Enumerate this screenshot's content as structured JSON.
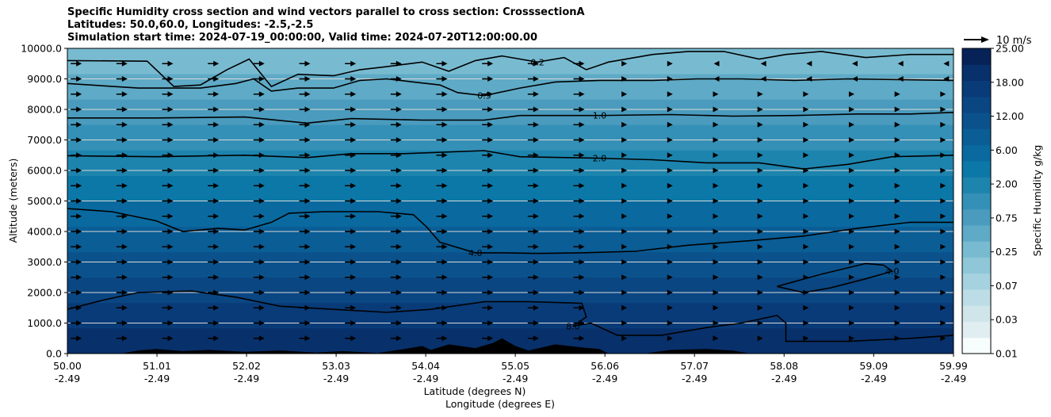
{
  "chart_data": {
    "type": "contour",
    "title_lines": [
      "Specific Humidity cross section and wind vectors parallel to cross section: CrosssectionA",
      "Latitudes: 50.0,60.0, Longitudes: -2.5,-2.5",
      "Simulation start time: 2024-07-19_00:00:00, Valid time: 2024-07-20T12:00:00.00"
    ],
    "ylabel": "Altitude (meters)",
    "xlabel_lat": "Latitude (degrees N)",
    "xlabel_lon": "Longitude (degrees E)",
    "ylim": [
      0,
      10000
    ],
    "y_ticks": [
      "0.0",
      "1000.0",
      "2000.0",
      "3000.0",
      "4000.0",
      "5000.0",
      "6000.0",
      "7000.0",
      "8000.0",
      "9000.0",
      "10000.0"
    ],
    "x_ticks": [
      {
        "lat": "50.00",
        "lon": "-2.49"
      },
      {
        "lat": "51.01",
        "lon": "-2.49"
      },
      {
        "lat": "52.02",
        "lon": "-2.49"
      },
      {
        "lat": "53.03",
        "lon": "-2.49"
      },
      {
        "lat": "54.04",
        "lon": "-2.49"
      },
      {
        "lat": "55.05",
        "lon": "-2.49"
      },
      {
        "lat": "56.06",
        "lon": "-2.49"
      },
      {
        "lat": "57.07",
        "lon": "-2.49"
      },
      {
        "lat": "58.08",
        "lon": "-2.49"
      },
      {
        "lat": "59.09",
        "lon": "-2.49"
      },
      {
        "lat": "59.99",
        "lon": "-2.49"
      }
    ],
    "colorbar_label": "Specific Humidity g/kg",
    "colorbar_ticks": [
      "0.01",
      "0.03",
      "0.07",
      "0.25",
      "0.75",
      "2.00",
      "6.00",
      "12.00",
      "18.00",
      "25.00"
    ],
    "colorbar_levels": [
      0.01,
      0.02,
      0.03,
      0.05,
      0.07,
      0.1,
      0.25,
      0.5,
      0.75,
      1.0,
      2.0,
      4.0,
      6.0,
      8.0,
      12.0,
      15.0,
      18.0,
      22.0,
      25.0
    ],
    "colorbar_colors": [
      "#f7fcfd",
      "#e0eef1",
      "#cfe5ea",
      "#bcdde5",
      "#a6d2df",
      "#8fc7d8",
      "#78bbd1",
      "#5faac6",
      "#4a9bbd",
      "#3490b6",
      "#1d84ad",
      "#0c78a8",
      "#0a6aa0",
      "#0a5d95",
      "#0b528c",
      "#0a4682",
      "#093b78",
      "#08306b",
      "#062257"
    ],
    "contours": [
      {
        "level": "0.2",
        "label": "0.2",
        "points": [
          [
            50,
            9600
          ],
          [
            50.9,
            9580
          ],
          [
            51.2,
            8750
          ],
          [
            51.5,
            8800
          ],
          [
            51.8,
            9300
          ],
          [
            52.05,
            9650
          ],
          [
            52.3,
            8750
          ],
          [
            52.6,
            9150
          ],
          [
            53.0,
            9100
          ],
          [
            53.3,
            9300
          ],
          [
            53.6,
            9400
          ],
          [
            54.0,
            9550
          ],
          [
            54.3,
            9250
          ],
          [
            54.6,
            9600
          ],
          [
            54.9,
            9750
          ],
          [
            55.3,
            9550
          ],
          [
            55.6,
            9700
          ],
          [
            55.85,
            9300
          ],
          [
            56.1,
            9550
          ],
          [
            56.6,
            9800
          ],
          [
            57.0,
            9900
          ],
          [
            57.4,
            9900
          ],
          [
            57.8,
            9650
          ],
          [
            58.1,
            9800
          ],
          [
            58.5,
            9900
          ],
          [
            59.0,
            9700
          ],
          [
            59.5,
            9800
          ],
          [
            59.99,
            9800
          ]
        ]
      },
      {
        "level": "0.5",
        "label": "0.5",
        "points": [
          [
            50,
            8850
          ],
          [
            50.8,
            8700
          ],
          [
            51.5,
            8700
          ],
          [
            51.9,
            8850
          ],
          [
            52.1,
            9000
          ],
          [
            52.3,
            8600
          ],
          [
            52.6,
            8700
          ],
          [
            53.0,
            8700
          ],
          [
            53.3,
            8950
          ],
          [
            53.6,
            9000
          ],
          [
            53.9,
            8900
          ],
          [
            54.2,
            8800
          ],
          [
            54.4,
            8550
          ],
          [
            54.7,
            8450
          ],
          [
            55.1,
            8700
          ],
          [
            55.5,
            8900
          ],
          [
            56.0,
            8950
          ],
          [
            56.6,
            8950
          ],
          [
            57.1,
            9000
          ],
          [
            57.6,
            9000
          ],
          [
            58.2,
            8950
          ],
          [
            58.8,
            9000
          ],
          [
            59.3,
            8980
          ],
          [
            59.99,
            8950
          ]
        ]
      },
      {
        "level": "1.0",
        "label": "1.0",
        "points": [
          [
            50,
            7720
          ],
          [
            51,
            7720
          ],
          [
            52,
            7750
          ],
          [
            52.7,
            7550
          ],
          [
            53.2,
            7700
          ],
          [
            54,
            7650
          ],
          [
            54.7,
            7650
          ],
          [
            55.1,
            7800
          ],
          [
            56,
            7800
          ],
          [
            56.8,
            7830
          ],
          [
            57.5,
            7780
          ],
          [
            58.2,
            7800
          ],
          [
            58.9,
            7850
          ],
          [
            59.5,
            7850
          ],
          [
            59.99,
            7900
          ]
        ]
      },
      {
        "level": "2.0",
        "label": "2.0",
        "points": [
          [
            50,
            6480
          ],
          [
            51,
            6450
          ],
          [
            52,
            6500
          ],
          [
            52.7,
            6420
          ],
          [
            53.2,
            6550
          ],
          [
            53.8,
            6550
          ],
          [
            54.7,
            6650
          ],
          [
            55.1,
            6450
          ],
          [
            56,
            6400
          ],
          [
            56.6,
            6350
          ],
          [
            57.2,
            6250
          ],
          [
            57.8,
            6250
          ],
          [
            58.3,
            6050
          ],
          [
            58.8,
            6200
          ],
          [
            59.3,
            6450
          ],
          [
            59.99,
            6500
          ]
        ]
      },
      {
        "level": "4.0",
        "label": "4.0",
        "points": [
          [
            50,
            4750
          ],
          [
            50.5,
            4650
          ],
          [
            51.0,
            4350
          ],
          [
            51.3,
            4000
          ],
          [
            51.7,
            4100
          ],
          [
            52.0,
            4050
          ],
          [
            52.3,
            4300
          ],
          [
            52.5,
            4600
          ],
          [
            52.9,
            4650
          ],
          [
            53.5,
            4650
          ],
          [
            53.9,
            4550
          ],
          [
            54.05,
            4150
          ],
          [
            54.2,
            3650
          ],
          [
            54.6,
            3300
          ],
          [
            54.9,
            3300
          ],
          [
            55.3,
            3280
          ],
          [
            55.8,
            3300
          ],
          [
            56.4,
            3350
          ],
          [
            57.0,
            3550
          ],
          [
            57.7,
            3700
          ],
          [
            58.3,
            3850
          ],
          [
            58.9,
            4100
          ],
          [
            59.5,
            4300
          ],
          [
            59.99,
            4300
          ]
        ]
      },
      {
        "level": "4.0",
        "label": "4.0",
        "points": [
          [
            58.0,
            2200
          ],
          [
            58.5,
            2600
          ],
          [
            59.0,
            2950
          ],
          [
            59.2,
            2900
          ],
          [
            59.3,
            2700
          ],
          [
            59.0,
            2450
          ],
          [
            58.6,
            2150
          ],
          [
            58.3,
            2000
          ],
          [
            58.0,
            2200
          ]
        ]
      },
      {
        "level": "8.0",
        "label": "8.0",
        "points": [
          [
            50,
            1450
          ],
          [
            50.4,
            1750
          ],
          [
            50.8,
            2000
          ],
          [
            51.4,
            2050
          ],
          [
            51.9,
            1850
          ],
          [
            52.4,
            1550
          ],
          [
            53.0,
            1450
          ],
          [
            53.6,
            1350
          ],
          [
            54.1,
            1450
          ],
          [
            54.7,
            1700
          ],
          [
            55.2,
            1700
          ],
          [
            55.8,
            1650
          ],
          [
            55.85,
            1200
          ],
          [
            55.7,
            900
          ],
          [
            55.9,
            1000
          ],
          [
            56.2,
            600
          ],
          [
            56.7,
            600
          ],
          [
            57.2,
            850
          ],
          [
            57.6,
            1000
          ],
          [
            58.0,
            1250
          ],
          [
            58.1,
            1000
          ],
          [
            58.1,
            400
          ],
          [
            58.8,
            400
          ],
          [
            59.5,
            500
          ],
          [
            59.99,
            600
          ]
        ]
      }
    ],
    "terrain": [
      [
        50,
        0
      ],
      [
        50.6,
        0
      ],
      [
        50.8,
        100
      ],
      [
        51.0,
        150
      ],
      [
        51.3,
        80
      ],
      [
        51.6,
        120
      ],
      [
        52.0,
        60
      ],
      [
        52.4,
        100
      ],
      [
        52.8,
        30
      ],
      [
        53.1,
        80
      ],
      [
        53.5,
        20
      ],
      [
        53.8,
        150
      ],
      [
        54.0,
        250
      ],
      [
        54.1,
        120
      ],
      [
        54.3,
        300
      ],
      [
        54.6,
        180
      ],
      [
        54.8,
        350
      ],
      [
        54.9,
        500
      ],
      [
        55.05,
        250
      ],
      [
        55.2,
        100
      ],
      [
        55.5,
        300
      ],
      [
        55.8,
        200
      ],
      [
        56.0,
        150
      ],
      [
        56.1,
        0
      ],
      [
        56.5,
        0
      ],
      [
        56.8,
        120
      ],
      [
        57.2,
        150
      ],
      [
        57.5,
        100
      ],
      [
        57.7,
        0
      ],
      [
        59.99,
        0
      ]
    ],
    "wind_rows": [
      500,
      1000,
      1500,
      2000,
      2500,
      3000,
      3500,
      4000,
      4500,
      5000,
      5500,
      6000,
      6500,
      7000,
      7500,
      8000,
      8500,
      9000,
      9500
    ],
    "wind_columns": 20,
    "wind_key": "10 m/s",
    "y_label_prefix_note": ""
  },
  "colors": {
    "background": "#ffffff",
    "contour_line": "#000000",
    "terrain": "#000000",
    "gridline": "#d8d8d8"
  }
}
